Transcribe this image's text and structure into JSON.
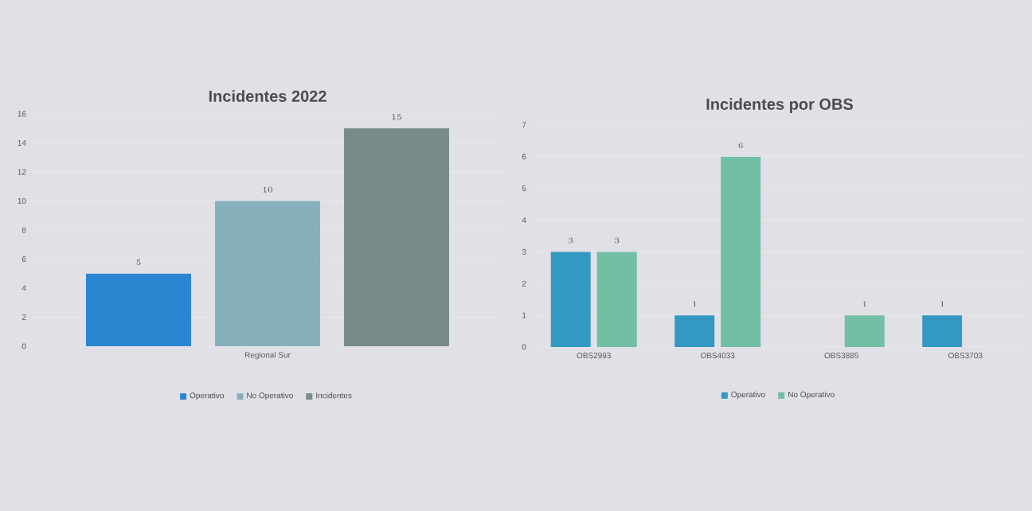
{
  "chart_data": [
    {
      "type": "bar",
      "title": "Incidentes 2022",
      "categories": [
        "Regional Sur"
      ],
      "series": [
        {
          "name": "Operativo",
          "color": "#2a86d1",
          "values": [
            5
          ]
        },
        {
          "name": "No Operativo",
          "color": "#86b0ba",
          "values": [
            10
          ]
        },
        {
          "name": "Incidentes",
          "color": "#788b8b",
          "values": [
            15
          ]
        }
      ],
      "ylim": [
        0,
        16
      ],
      "yticks": [
        0,
        2,
        4,
        6,
        8,
        10,
        12,
        14,
        16
      ],
      "grid": "y",
      "legend": "bottom",
      "data_labels": true
    },
    {
      "type": "bar",
      "title": "Incidentes por OBS",
      "categories": [
        "OBS2993",
        "OBS4033",
        "OBS3885",
        "OBS3703"
      ],
      "series": [
        {
          "name": "Operativo",
          "color": "#3399c4",
          "values": [
            3,
            1,
            null,
            1
          ]
        },
        {
          "name": "No Operativo",
          "color": "#72bfa6",
          "values": [
            3,
            6,
            1,
            null
          ]
        }
      ],
      "ylim": [
        0,
        7
      ],
      "yticks": [
        0,
        1,
        2,
        3,
        4,
        5,
        6,
        7
      ],
      "grid": "y",
      "legend": "bottom",
      "data_labels": true
    }
  ]
}
